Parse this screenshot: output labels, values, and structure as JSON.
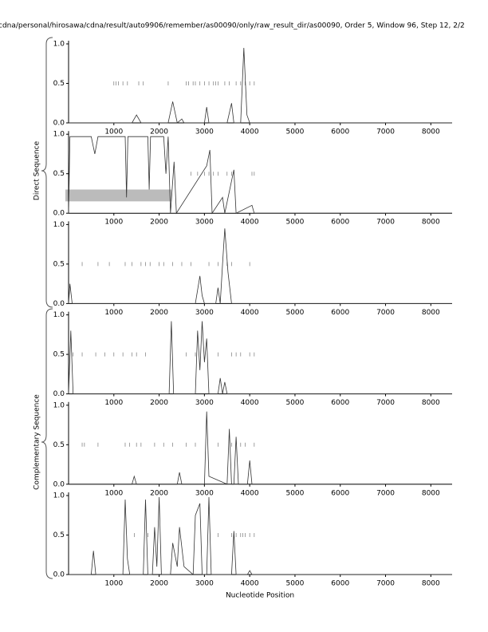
{
  "title": "cdna/personal/hirosawa/cdna/result/auto9906/remember/as00090/only/raw_result_dir/as00090, Order 5, Window 96, Step 12, 2/2",
  "x_label": "Nucleotide Position",
  "group_labels": [
    "Direct Sequence",
    "Complementary Sequence"
  ],
  "chart_data": [
    {
      "type": "line",
      "color": "#333333",
      "xlim": [
        0,
        8470
      ],
      "ylim": [
        0,
        1
      ],
      "xticks": [
        1000,
        2000,
        3000,
        4000,
        5000,
        6000,
        7000,
        8000
      ],
      "yticks": [
        {
          "value": 0,
          "label": "0.0"
        },
        {
          "value": 0.5,
          "label": "0.5"
        },
        {
          "value": 1,
          "label": "1.0"
        }
      ],
      "x": [
        0,
        1400,
        1500,
        1600,
        2200,
        2300,
        2400,
        2500,
        2550,
        2600,
        3000,
        3050,
        3100,
        3500,
        3600,
        3650,
        3800,
        3870,
        3940,
        4000,
        4100,
        8470
      ],
      "values": [
        0,
        0,
        0.1,
        0,
        0,
        0.27,
        0,
        0.05,
        0,
        0,
        0,
        0.2,
        0,
        0,
        0.25,
        0,
        0,
        0.95,
        0.1,
        0,
        0,
        0
      ],
      "markers": {
        "y": 0.5,
        "x": [
          1000,
          1050,
          1100,
          1200,
          1300,
          1550,
          1650,
          2200,
          2600,
          2650,
          2750,
          2800,
          2900,
          3000,
          3100,
          3200,
          3250,
          3300,
          3450,
          3550,
          3700,
          3800,
          3900,
          4000,
          4100
        ]
      }
    },
    {
      "type": "line",
      "color": "#333333",
      "xlim": [
        0,
        8470
      ],
      "ylim": [
        0,
        1
      ],
      "xticks": [
        1000,
        2000,
        3000,
        4000,
        5000,
        6000,
        7000,
        8000
      ],
      "yticks": [
        {
          "value": 0,
          "label": "0.0"
        },
        {
          "value": 0.5,
          "label": "0.5"
        },
        {
          "value": 1,
          "label": "1.0"
        }
      ],
      "x": [
        0,
        30,
        500,
        580,
        650,
        1250,
        1280,
        1310,
        1750,
        1780,
        1810,
        2100,
        2150,
        2200,
        2250,
        2330,
        2380,
        3050,
        3120,
        3170,
        3400,
        3450,
        3650,
        3700,
        4050,
        4100,
        8470
      ],
      "values": [
        0,
        0.97,
        0.97,
        0.75,
        0.97,
        0.97,
        0.2,
        0.97,
        0.97,
        0.3,
        0.97,
        0.97,
        0.5,
        0.97,
        0,
        0.65,
        0,
        0.6,
        0.8,
        0,
        0.2,
        0,
        0.55,
        0,
        0.1,
        0,
        0
      ],
      "highlight": {
        "x": [
          0,
          2270
        ],
        "y": [
          0.15,
          0.3
        ]
      },
      "markers": {
        "y": 0.5,
        "x": [
          2700,
          2850,
          3000,
          3100,
          3200,
          3300,
          3500,
          3600,
          4050,
          4100
        ]
      }
    },
    {
      "type": "line",
      "color": "#333333",
      "xlim": [
        0,
        8470
      ],
      "ylim": [
        0,
        1
      ],
      "xticks": [
        1000,
        2000,
        3000,
        4000,
        5000,
        6000,
        7000,
        8000
      ],
      "yticks": [
        {
          "value": 0,
          "label": "0.0"
        },
        {
          "value": 0.5,
          "label": "0.5"
        },
        {
          "value": 1,
          "label": "1.0"
        }
      ],
      "x": [
        0,
        30,
        80,
        2800,
        2900,
        2950,
        3000,
        3250,
        3300,
        3350,
        3400,
        3450,
        3520,
        3600,
        8470
      ],
      "values": [
        0,
        0.25,
        0,
        0,
        0.35,
        0.1,
        0,
        0,
        0.2,
        0,
        0.5,
        0.95,
        0.4,
        0,
        0
      ],
      "markers": {
        "y": 0.5,
        "x": [
          300,
          650,
          900,
          1250,
          1400,
          1600,
          1700,
          1800,
          2000,
          2100,
          2300,
          2500,
          2700,
          3100,
          3300,
          3500,
          3600,
          4000
        ]
      }
    },
    {
      "type": "line",
      "color": "#333333",
      "xlim": [
        0,
        8470
      ],
      "ylim": [
        0,
        1
      ],
      "xticks": [
        1000,
        2000,
        3000,
        4000,
        5000,
        6000,
        7000,
        8000
      ],
      "yticks": [
        {
          "value": 0,
          "label": "0.0"
        },
        {
          "value": 0.5,
          "label": "0.5"
        },
        {
          "value": 1,
          "label": "1.0"
        }
      ],
      "x": [
        0,
        50,
        100,
        2220,
        2270,
        2320,
        2800,
        2850,
        2900,
        2950,
        3000,
        3050,
        3100,
        3300,
        3350,
        3400,
        3450,
        3500,
        8470
      ],
      "values": [
        0,
        0.8,
        0,
        0,
        0.92,
        0,
        0,
        0.8,
        0.3,
        0.92,
        0.4,
        0.7,
        0,
        0,
        0.2,
        0,
        0.15,
        0,
        0
      ],
      "markers": {
        "y": 0.5,
        "x": [
          100,
          300,
          600,
          800,
          1000,
          1200,
          1400,
          1500,
          1700,
          2600,
          2800,
          3300,
          3600,
          3700,
          3800,
          4000,
          4100
        ]
      }
    },
    {
      "type": "line",
      "color": "#333333",
      "xlim": [
        0,
        8470
      ],
      "ylim": [
        0,
        1
      ],
      "xticks": [
        1000,
        2000,
        3000,
        4000,
        5000,
        6000,
        7000,
        8000
      ],
      "yticks": [
        {
          "value": 0,
          "label": "0.0"
        },
        {
          "value": 0.5,
          "label": "0.5"
        },
        {
          "value": 1,
          "label": "1.0"
        }
      ],
      "x": [
        0,
        1400,
        1450,
        1500,
        2400,
        2450,
        2500,
        3000,
        3050,
        3100,
        3500,
        3550,
        3600,
        3650,
        3700,
        3750,
        3950,
        4000,
        4050,
        8470
      ],
      "values": [
        0,
        0,
        0.1,
        0,
        0,
        0.15,
        0,
        0,
        0.92,
        0.1,
        0,
        0.7,
        0,
        0,
        0.6,
        0,
        0,
        0.3,
        0,
        0
      ],
      "markers": {
        "y": 0.5,
        "x": [
          300,
          350,
          650,
          1250,
          1350,
          1500,
          1600,
          1900,
          2100,
          2300,
          2600,
          2800,
          3300,
          3600,
          3800,
          3900,
          4100
        ]
      }
    },
    {
      "type": "line",
      "color": "#333333",
      "xlim": [
        0,
        8470
      ],
      "ylim": [
        0,
        1
      ],
      "xticks": [
        1000,
        2000,
        3000,
        4000,
        5000,
        6000,
        7000,
        8000
      ],
      "yticks": [
        {
          "value": 0,
          "label": "0.0"
        },
        {
          "value": 0.5,
          "label": "0.5"
        },
        {
          "value": 1,
          "label": "1.0"
        }
      ],
      "x": [
        0,
        500,
        550,
        600,
        1200,
        1250,
        1300,
        1350,
        1650,
        1700,
        1750,
        1850,
        1900,
        1950,
        2000,
        2050,
        2250,
        2300,
        2400,
        2450,
        2550,
        2750,
        2800,
        2900,
        2950,
        3050,
        3100,
        3150,
        3600,
        3650,
        3700,
        3950,
        4000,
        4050,
        8470
      ],
      "values": [
        0,
        0,
        0.3,
        0,
        0,
        0.95,
        0.2,
        0,
        0,
        0.95,
        0,
        0,
        0.6,
        0.1,
        0.98,
        0,
        0,
        0.4,
        0.1,
        0.6,
        0.1,
        0,
        0.75,
        0.9,
        0,
        0,
        0.98,
        0,
        0,
        0.55,
        0,
        0,
        0.05,
        0,
        0
      ],
      "markers": {
        "y": 0.5,
        "x": [
          1450,
          1750,
          3300,
          3600,
          3650,
          3700,
          3800,
          3850,
          3900,
          4000,
          4100
        ]
      }
    }
  ]
}
